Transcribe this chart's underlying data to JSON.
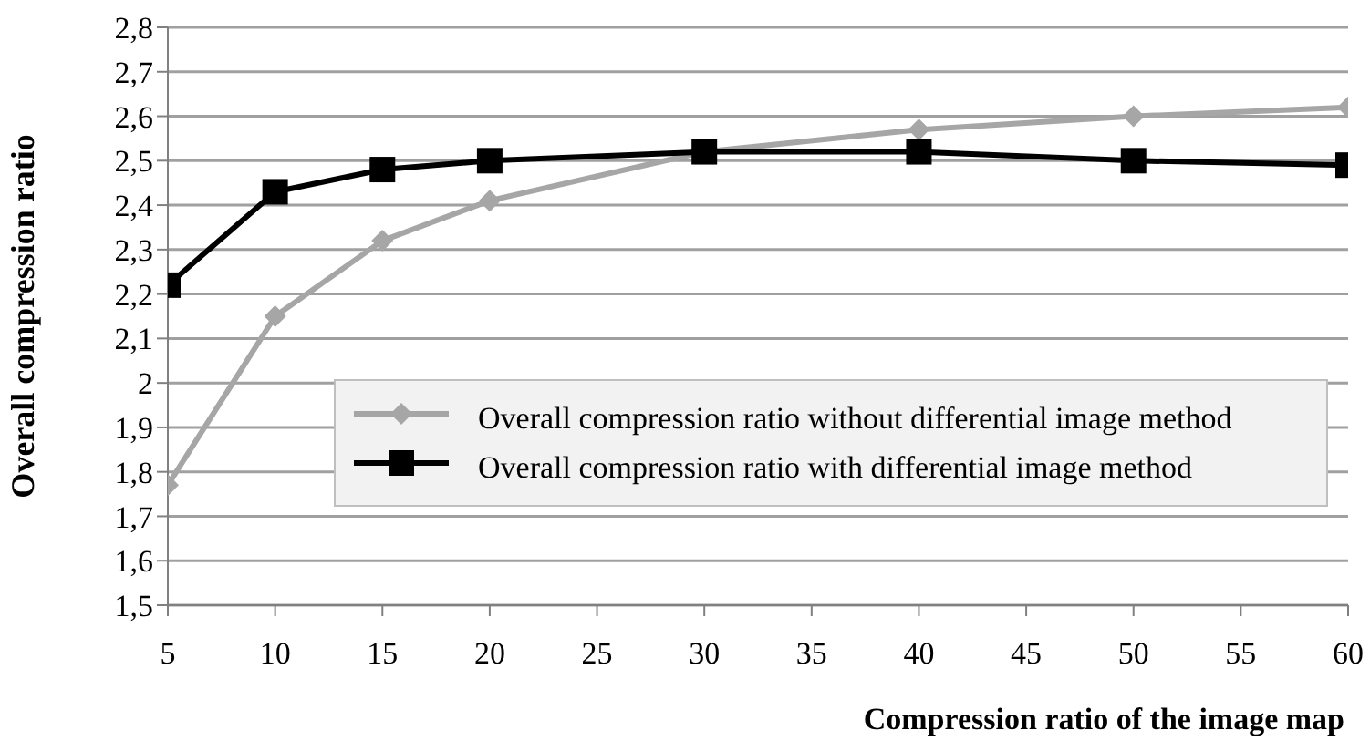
{
  "chart_data": {
    "type": "line",
    "xlabel": "Compression ratio of the image map",
    "ylabel": "Overall compression ratio",
    "x": [
      5,
      10,
      15,
      20,
      30,
      40,
      50,
      60
    ],
    "series": [
      {
        "name": "Overall compression ratio without differential image method",
        "color": "#a6a6a6",
        "marker": "diamond",
        "values": [
          1.77,
          2.15,
          2.32,
          2.41,
          2.52,
          2.57,
          2.6,
          2.62
        ]
      },
      {
        "name": "Overall compression ratio with differential image method",
        "color": "#000000",
        "marker": "square",
        "values": [
          2.22,
          2.43,
          2.48,
          2.5,
          2.52,
          2.52,
          2.5,
          2.49
        ]
      }
    ],
    "xlim": [
      5,
      60
    ],
    "xticks": [
      5,
      10,
      15,
      20,
      25,
      30,
      35,
      40,
      45,
      50,
      55,
      60
    ],
    "ylim": [
      1.5,
      2.8
    ],
    "yticks": [
      {
        "value": 1.5,
        "label": "1,5"
      },
      {
        "value": 1.6,
        "label": "1,6"
      },
      {
        "value": 1.7,
        "label": "1,7"
      },
      {
        "value": 1.8,
        "label": "1,8"
      },
      {
        "value": 1.9,
        "label": "1,9"
      },
      {
        "value": 2,
        "label": "2"
      },
      {
        "value": 2.1,
        "label": "2,1"
      },
      {
        "value": 2.2,
        "label": "2,2"
      },
      {
        "value": 2.3,
        "label": "2,3"
      },
      {
        "value": 2.4,
        "label": "2,4"
      },
      {
        "value": 2.5,
        "label": "2,5"
      },
      {
        "value": 2.6,
        "label": "2,6"
      },
      {
        "value": 2.7,
        "label": "2,7"
      },
      {
        "value": 2.8,
        "label": "2,8"
      }
    ],
    "grid": "y",
    "legend": "bottom right",
    "line_style": "solid"
  }
}
